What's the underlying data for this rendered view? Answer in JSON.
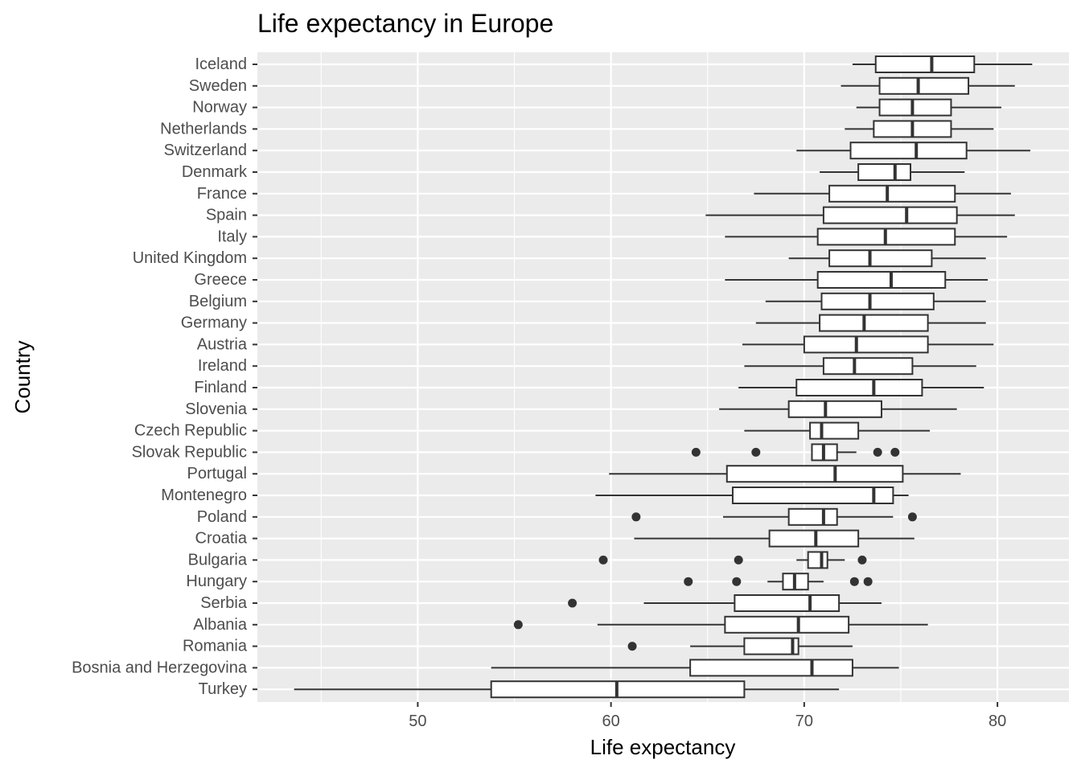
{
  "chart_data": {
    "type": "boxplot",
    "orientation": "horizontal",
    "title": "Life expectancy in Europe",
    "xlabel": "Life expectancy",
    "ylabel": "Country",
    "xlim": [
      41.7,
      83.7
    ],
    "x_ticks": [
      50,
      60,
      70,
      80
    ],
    "x_minor_ticks": [
      45,
      55,
      65,
      75
    ],
    "grid": true,
    "legend": "none",
    "colors": {
      "panel": "#ebebeb",
      "grid": "#ffffff",
      "box_fill": "#ffffff",
      "box_line": "#333333",
      "outlier": "#333333",
      "tick_label": "#4d4d4d"
    },
    "boxes": [
      {
        "label": "Iceland",
        "whisker_low": 72.5,
        "q1": 73.7,
        "median": 76.6,
        "q3": 78.8,
        "whisker_high": 81.8,
        "outliers": []
      },
      {
        "label": "Sweden",
        "whisker_low": 71.9,
        "q1": 73.9,
        "median": 75.9,
        "q3": 78.5,
        "whisker_high": 80.9,
        "outliers": []
      },
      {
        "label": "Norway",
        "whisker_low": 72.7,
        "q1": 73.9,
        "median": 75.6,
        "q3": 77.6,
        "whisker_high": 80.2,
        "outliers": []
      },
      {
        "label": "Netherlands",
        "whisker_low": 72.1,
        "q1": 73.6,
        "median": 75.6,
        "q3": 77.6,
        "whisker_high": 79.8,
        "outliers": []
      },
      {
        "label": "Switzerland",
        "whisker_low": 69.6,
        "q1": 72.4,
        "median": 75.8,
        "q3": 78.4,
        "whisker_high": 81.7,
        "outliers": []
      },
      {
        "label": "Denmark",
        "whisker_low": 70.8,
        "q1": 72.8,
        "median": 74.7,
        "q3": 75.5,
        "whisker_high": 78.3,
        "outliers": []
      },
      {
        "label": "France",
        "whisker_low": 67.4,
        "q1": 71.3,
        "median": 74.3,
        "q3": 77.8,
        "whisker_high": 80.7,
        "outliers": []
      },
      {
        "label": "Spain",
        "whisker_low": 64.9,
        "q1": 71.0,
        "median": 75.3,
        "q3": 77.9,
        "whisker_high": 80.9,
        "outliers": []
      },
      {
        "label": "Italy",
        "whisker_low": 65.9,
        "q1": 70.7,
        "median": 74.2,
        "q3": 77.8,
        "whisker_high": 80.5,
        "outliers": []
      },
      {
        "label": "United Kingdom",
        "whisker_low": 69.2,
        "q1": 71.3,
        "median": 73.4,
        "q3": 76.6,
        "whisker_high": 79.4,
        "outliers": []
      },
      {
        "label": "Greece",
        "whisker_low": 65.9,
        "q1": 70.7,
        "median": 74.5,
        "q3": 77.3,
        "whisker_high": 79.5,
        "outliers": []
      },
      {
        "label": "Belgium",
        "whisker_low": 68.0,
        "q1": 70.9,
        "median": 73.4,
        "q3": 76.7,
        "whisker_high": 79.4,
        "outliers": []
      },
      {
        "label": "Germany",
        "whisker_low": 67.5,
        "q1": 70.8,
        "median": 73.1,
        "q3": 76.4,
        "whisker_high": 79.4,
        "outliers": []
      },
      {
        "label": "Austria",
        "whisker_low": 66.8,
        "q1": 70.0,
        "median": 72.7,
        "q3": 76.4,
        "whisker_high": 79.8,
        "outliers": []
      },
      {
        "label": "Ireland",
        "whisker_low": 66.9,
        "q1": 71.0,
        "median": 72.6,
        "q3": 75.6,
        "whisker_high": 78.9,
        "outliers": []
      },
      {
        "label": "Finland",
        "whisker_low": 66.6,
        "q1": 69.6,
        "median": 73.6,
        "q3": 76.1,
        "whisker_high": 79.3,
        "outliers": []
      },
      {
        "label": "Slovenia",
        "whisker_low": 65.6,
        "q1": 69.2,
        "median": 71.1,
        "q3": 74.0,
        "whisker_high": 77.9,
        "outliers": []
      },
      {
        "label": "Czech Republic",
        "whisker_low": 66.9,
        "q1": 70.3,
        "median": 70.9,
        "q3": 72.8,
        "whisker_high": 76.5,
        "outliers": []
      },
      {
        "label": "Slovak Republic",
        "whisker_low": 70.4,
        "q1": 70.4,
        "median": 71.0,
        "q3": 71.7,
        "whisker_high": 72.7,
        "outliers": [
          64.4,
          67.5,
          73.8,
          74.7
        ]
      },
      {
        "label": "Portugal",
        "whisker_low": 59.9,
        "q1": 66.0,
        "median": 71.6,
        "q3": 75.1,
        "whisker_high": 78.1,
        "outliers": []
      },
      {
        "label": "Montenegro",
        "whisker_low": 59.2,
        "q1": 66.3,
        "median": 73.6,
        "q3": 74.6,
        "whisker_high": 75.4,
        "outliers": []
      },
      {
        "label": "Poland",
        "whisker_low": 65.8,
        "q1": 69.2,
        "median": 71.0,
        "q3": 71.7,
        "whisker_high": 74.6,
        "outliers": [
          61.3,
          75.6
        ]
      },
      {
        "label": "Croatia",
        "whisker_low": 61.2,
        "q1": 68.2,
        "median": 70.6,
        "q3": 72.8,
        "whisker_high": 75.7,
        "outliers": []
      },
      {
        "label": "Bulgaria",
        "whisker_low": 69.6,
        "q1": 70.2,
        "median": 70.9,
        "q3": 71.2,
        "whisker_high": 72.1,
        "outliers": [
          59.6,
          66.6,
          73.0
        ]
      },
      {
        "label": "Hungary",
        "whisker_low": 68.1,
        "q1": 68.9,
        "median": 69.5,
        "q3": 70.2,
        "whisker_high": 71.0,
        "outliers": [
          64.0,
          66.5,
          72.6,
          73.3
        ]
      },
      {
        "label": "Serbia",
        "whisker_low": 61.7,
        "q1": 66.4,
        "median": 70.3,
        "q3": 71.8,
        "whisker_high": 74.0,
        "outliers": [
          58.0
        ]
      },
      {
        "label": "Albania",
        "whisker_low": 59.3,
        "q1": 65.9,
        "median": 69.7,
        "q3": 72.3,
        "whisker_high": 76.4,
        "outliers": [
          55.2
        ]
      },
      {
        "label": "Romania",
        "whisker_low": 64.1,
        "q1": 66.9,
        "median": 69.4,
        "q3": 69.7,
        "whisker_high": 72.5,
        "outliers": [
          61.1
        ]
      },
      {
        "label": "Bosnia and Herzegovina",
        "whisker_low": 53.8,
        "q1": 64.1,
        "median": 70.4,
        "q3": 72.5,
        "whisker_high": 74.9,
        "outliers": []
      },
      {
        "label": "Turkey",
        "whisker_low": 43.6,
        "q1": 53.8,
        "median": 60.3,
        "q3": 66.9,
        "whisker_high": 71.8,
        "outliers": []
      }
    ]
  }
}
